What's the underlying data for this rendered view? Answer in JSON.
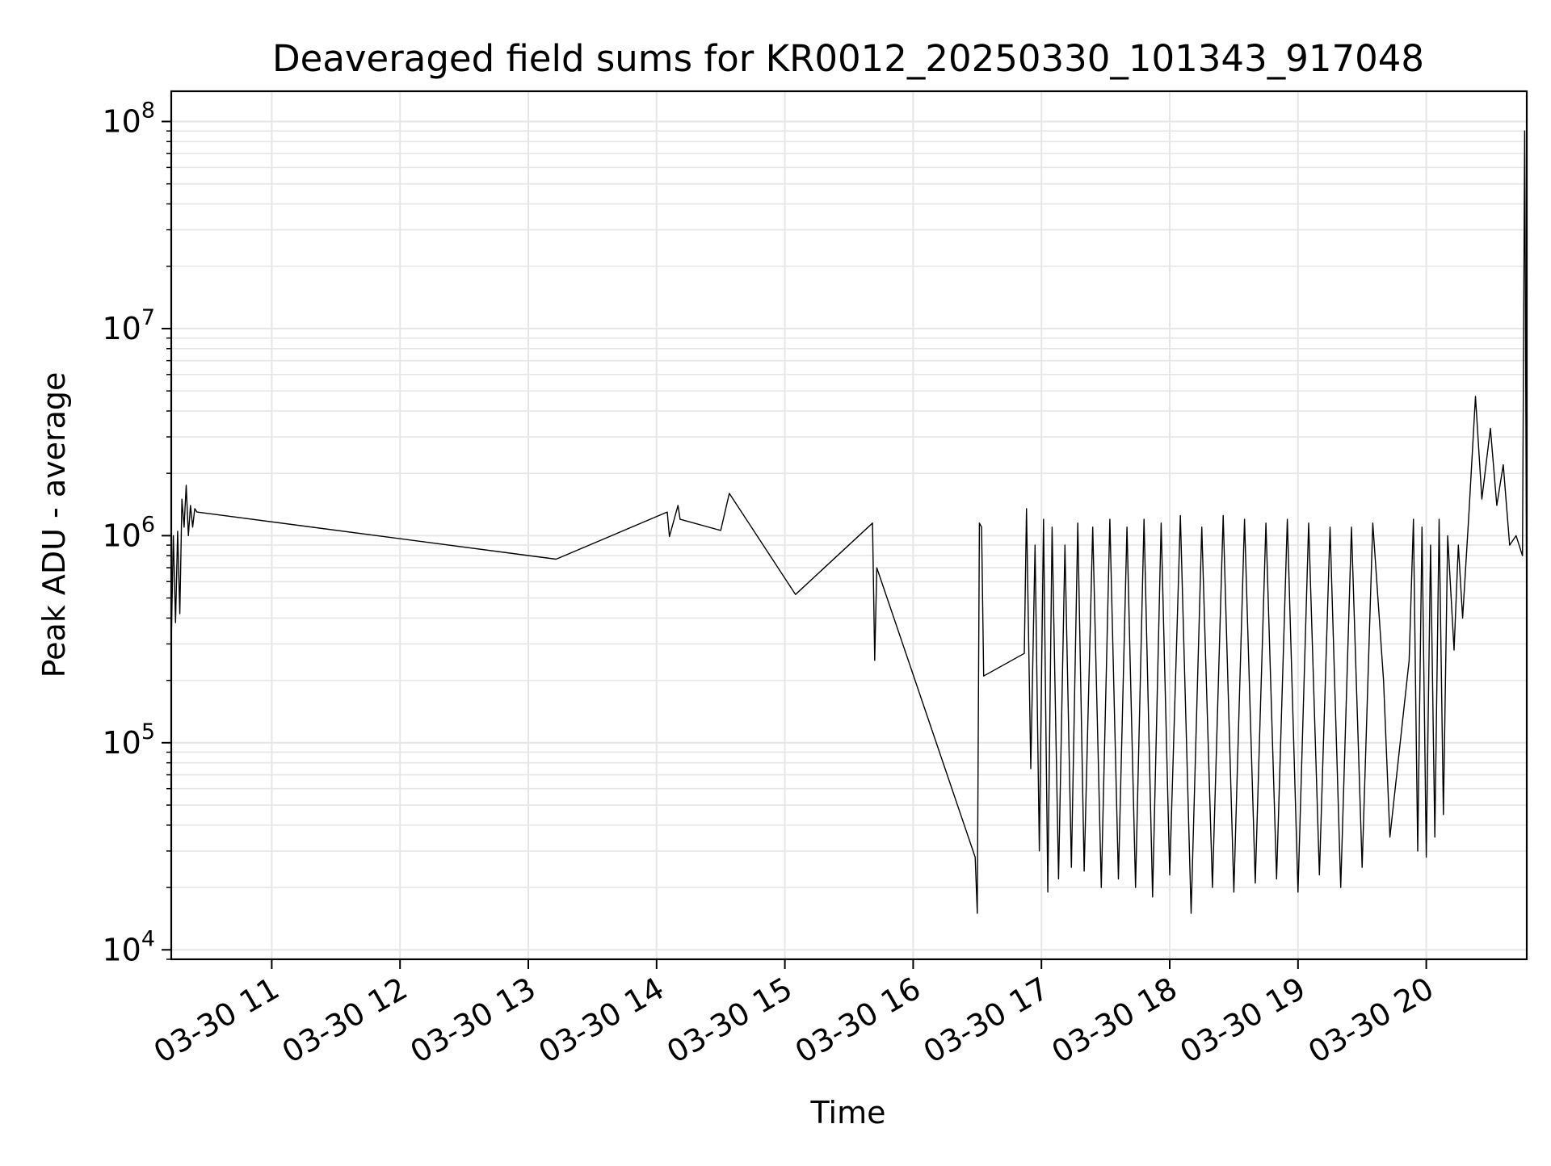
{
  "chart_data": {
    "type": "line",
    "title": "Deaveraged field sums for KR0012_20250330_101343_917048",
    "xlabel": "Time",
    "ylabel": "Peak ADU - average",
    "yscale": "log",
    "grid": true,
    "legend": "none",
    "line_color": "#000000",
    "grid_color": "#e6e6e6",
    "xlim": [
      "2025-03-30 10:13",
      "2025-03-30 20:47"
    ],
    "ylim": [
      9000,
      140000000
    ],
    "x_ticks": [
      "2025-03-30 11:00",
      "2025-03-30 12:00",
      "2025-03-30 13:00",
      "2025-03-30 14:00",
      "2025-03-30 15:00",
      "2025-03-30 16:00",
      "2025-03-30 17:00",
      "2025-03-30 18:00",
      "2025-03-30 19:00",
      "2025-03-30 20:00"
    ],
    "x_tick_labels": [
      "03-30 11",
      "03-30 12",
      "03-30 13",
      "03-30 14",
      "03-30 15",
      "03-30 16",
      "03-30 17",
      "03-30 18",
      "03-30 19",
      "03-30 20"
    ],
    "y_ticks": [
      {
        "value": 10000,
        "base": "10",
        "exp": "4"
      },
      {
        "value": 100000,
        "base": "10",
        "exp": "5"
      },
      {
        "value": 1000000,
        "base": "10",
        "exp": "6"
      },
      {
        "value": 10000000,
        "base": "10",
        "exp": "7"
      },
      {
        "value": 100000000,
        "base": "10",
        "exp": "8"
      }
    ],
    "series": [
      {
        "x": [
          "2025-03-30 10:13",
          "2025-03-30 10:14",
          "2025-03-30 10:15",
          "2025-03-30 10:16",
          "2025-03-30 10:17",
          "2025-03-30 10:18",
          "2025-03-30 10:19",
          "2025-03-30 10:20",
          "2025-03-30 10:21",
          "2025-03-30 10:22",
          "2025-03-30 10:23",
          "2025-03-30 10:24",
          "2025-03-30 10:25",
          "2025-03-30 13:13",
          "2025-03-30 14:05",
          "2025-03-30 14:06",
          "2025-03-30 14:10",
          "2025-03-30 14:11",
          "2025-03-30 14:30",
          "2025-03-30 14:34",
          "2025-03-30 15:05",
          "2025-03-30 15:41",
          "2025-03-30 15:42",
          "2025-03-30 15:43",
          "2025-03-30 16:29",
          "2025-03-30 16:30",
          "2025-03-30 16:31",
          "2025-03-30 16:32",
          "2025-03-30 16:33",
          "2025-03-30 16:52",
          "2025-03-30 16:53",
          "2025-03-30 16:55",
          "2025-03-30 16:57",
          "2025-03-30 16:59",
          "2025-03-30 17:01",
          "2025-03-30 17:03",
          "2025-03-30 17:05",
          "2025-03-30 17:08",
          "2025-03-30 17:11",
          "2025-03-30 17:14",
          "2025-03-30 17:17",
          "2025-03-30 17:20",
          "2025-03-30 17:24",
          "2025-03-30 17:28",
          "2025-03-30 17:32",
          "2025-03-30 17:36",
          "2025-03-30 17:40",
          "2025-03-30 17:44",
          "2025-03-30 17:48",
          "2025-03-30 17:52",
          "2025-03-30 17:56",
          "2025-03-30 18:00",
          "2025-03-30 18:05",
          "2025-03-30 18:10",
          "2025-03-30 18:15",
          "2025-03-30 18:20",
          "2025-03-30 18:25",
          "2025-03-30 18:30",
          "2025-03-30 18:35",
          "2025-03-30 18:40",
          "2025-03-30 18:45",
          "2025-03-30 18:50",
          "2025-03-30 18:55",
          "2025-03-30 19:00",
          "2025-03-30 19:05",
          "2025-03-30 19:10",
          "2025-03-30 19:15",
          "2025-03-30 19:20",
          "2025-03-30 19:25",
          "2025-03-30 19:30",
          "2025-03-30 19:35",
          "2025-03-30 19:40",
          "2025-03-30 19:43",
          "2025-03-30 19:52",
          "2025-03-30 19:54",
          "2025-03-30 19:56",
          "2025-03-30 19:58",
          "2025-03-30 20:00",
          "2025-03-30 20:02",
          "2025-03-30 20:04",
          "2025-03-30 20:06",
          "2025-03-30 20:08",
          "2025-03-30 20:10",
          "2025-03-30 20:13",
          "2025-03-30 20:15",
          "2025-03-30 20:17",
          "2025-03-30 20:20",
          "2025-03-30 20:23",
          "2025-03-30 20:26",
          "2025-03-30 20:30",
          "2025-03-30 20:33",
          "2025-03-30 20:36",
          "2025-03-30 20:39",
          "2025-03-30 20:42",
          "2025-03-30 20:45",
          "2025-03-30 20:46",
          "2025-03-30 20:47"
        ],
        "y": [
          300000,
          1000000,
          380000,
          1050000,
          420000,
          1500000,
          1100000,
          1750000,
          1000000,
          1400000,
          1100000,
          1350000,
          1300000,
          770000,
          1300000,
          990000,
          1400000,
          1200000,
          1060000,
          1600000,
          520000,
          1150000,
          250000,
          700000,
          28000,
          15000,
          1150000,
          1100000,
          210000,
          270000,
          1350000,
          75000,
          900000,
          30000,
          1200000,
          19000,
          1100000,
          22000,
          900000,
          25000,
          1150000,
          24000,
          1100000,
          20000,
          1200000,
          22000,
          1100000,
          20000,
          1200000,
          18000,
          1150000,
          23000,
          1250000,
          15000,
          1100000,
          20000,
          1250000,
          19000,
          1200000,
          21000,
          1150000,
          22000,
          1200000,
          19000,
          1150000,
          23000,
          1100000,
          20000,
          1100000,
          25000,
          1150000,
          200000,
          35000,
          250000,
          1200000,
          30000,
          1100000,
          28000,
          900000,
          35000,
          1200000,
          45000,
          1000000,
          280000,
          900000,
          400000,
          1300000,
          4700000,
          1500000,
          3300000,
          1400000,
          2200000,
          900000,
          1000000,
          800000,
          90000000,
          350000
        ]
      }
    ]
  }
}
